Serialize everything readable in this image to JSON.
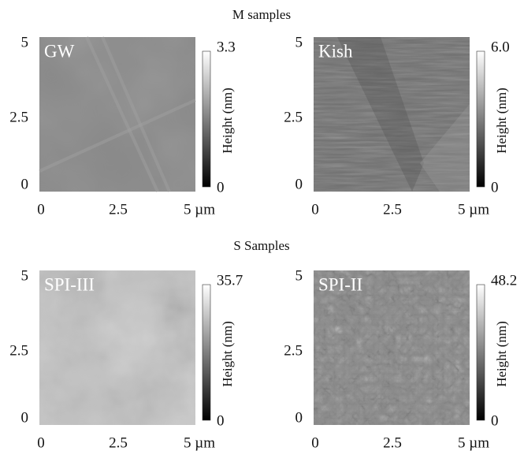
{
  "sections": [
    {
      "title": "M samples",
      "panels": [
        {
          "label": "GW",
          "colorbar_max": "3.3",
          "colorbar_min": "0",
          "colorbar_label": "Height (nm)",
          "yticks": [
            "5",
            "2.5",
            "0"
          ],
          "xticks": [
            "0",
            "2.5",
            "5 µm"
          ]
        },
        {
          "label": "Kish",
          "colorbar_max": "6.0",
          "colorbar_min": "0",
          "colorbar_label": "Height (nm)",
          "yticks": [
            "5",
            "2.5",
            "0"
          ],
          "xticks": [
            "0",
            "2.5",
            "5 µm"
          ]
        }
      ]
    },
    {
      "title": "S Samples",
      "panels": [
        {
          "label": "SPI-III",
          "colorbar_max": "35.7",
          "colorbar_min": "0",
          "colorbar_label": "Height (nm)",
          "yticks": [
            "5",
            "2.5",
            "0"
          ],
          "xticks": [
            "0",
            "2.5",
            "5 µm"
          ]
        },
        {
          "label": "SPI-II",
          "colorbar_max": "48.2",
          "colorbar_min": "0",
          "colorbar_label": "Height (nm)",
          "yticks": [
            "5",
            "2.5",
            "0"
          ],
          "xticks": [
            "0",
            "2.5",
            "5 µm"
          ]
        }
      ]
    }
  ]
}
